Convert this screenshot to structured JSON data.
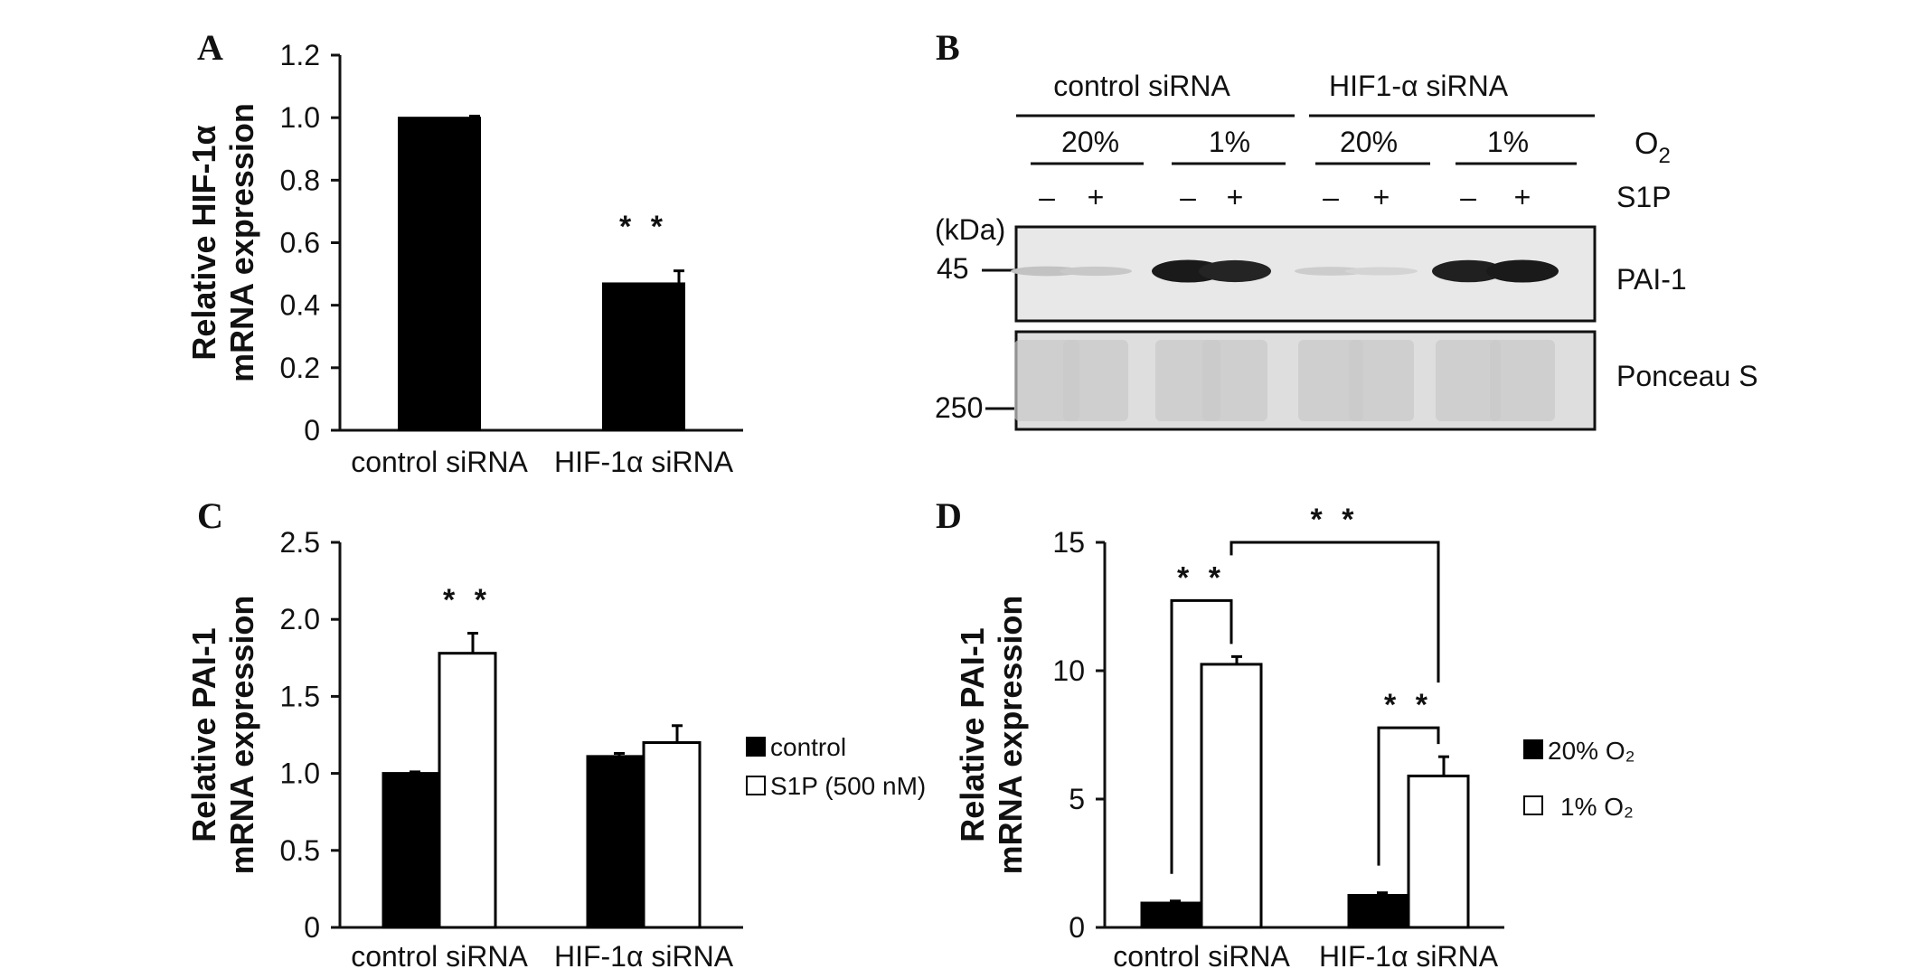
{
  "panels": {
    "a": "A",
    "b": "B",
    "c": "C",
    "d": "D"
  },
  "colors": {
    "black_bar": "#000000",
    "white_bar": "#ffffff",
    "axis": "#111111"
  },
  "chart_data": [
    {
      "panel": "A",
      "type": "bar",
      "ylabel_lines": [
        "Relative HIF-1α",
        "mRNA expression"
      ],
      "ylim": [
        0,
        1.2
      ],
      "yticks": [
        "0",
        "0.2",
        "0.4",
        "0.6",
        "0.8",
        "1.0",
        "1.2"
      ],
      "ytick_values": [
        0,
        0.2,
        0.4,
        0.6,
        0.8,
        1.0,
        1.2
      ],
      "categories": [
        "control siRNA",
        "HIF-1α siRNA"
      ],
      "values": [
        1.0,
        0.47
      ],
      "errors": [
        0.005,
        0.04
      ],
      "significance": [
        "",
        "* *"
      ]
    },
    {
      "panel": "C",
      "type": "bar",
      "ylabel_lines": [
        "Relative PAI-1",
        "mRNA expression"
      ],
      "ylim": [
        0,
        2.5
      ],
      "yticks": [
        "0",
        "0.5",
        "1.0",
        "1.5",
        "2.0",
        "2.5"
      ],
      "ytick_values": [
        0,
        0.5,
        1.0,
        1.5,
        2.0,
        2.5
      ],
      "categories": [
        "control siRNA",
        "HIF-1α siRNA"
      ],
      "series": [
        {
          "name": "control",
          "values": [
            1.0,
            1.11
          ],
          "errors": [
            0.01,
            0.02
          ]
        },
        {
          "name": "S1P (500 nM)",
          "values": [
            1.78,
            1.2
          ],
          "errors": [
            0.13,
            0.11
          ]
        }
      ],
      "significance": "* *",
      "legend_position": "right"
    },
    {
      "panel": "D",
      "type": "bar",
      "ylabel_lines": [
        "Relative PAI-1",
        "mRNA expression"
      ],
      "ylim": [
        0,
        15
      ],
      "yticks": [
        "0",
        "5",
        "10",
        "15"
      ],
      "ytick_values": [
        0,
        5,
        10,
        15
      ],
      "categories": [
        "control siRNA",
        "HIF-1α siRNA"
      ],
      "series": [
        {
          "name": "20% O₂",
          "values": [
            0.95,
            1.25
          ],
          "errors": [
            0.08,
            0.1
          ]
        },
        {
          "name": "1% O₂",
          "values": [
            10.25,
            5.9
          ],
          "errors": [
            0.3,
            0.75
          ]
        }
      ],
      "significance": [
        "* *",
        "* *",
        "* *"
      ],
      "legend_position": "right"
    }
  ],
  "blot": {
    "group_labels": [
      "control siRNA",
      "HIF1-α siRNA"
    ],
    "o2_levels": [
      "20%",
      "1%",
      "20%",
      "1%"
    ],
    "o2_label": "O",
    "o2_subscript": "2",
    "s1p_label": "S1P",
    "s1p_signs": [
      "–",
      "+",
      "–",
      "+",
      "–",
      "+",
      "–",
      "+"
    ],
    "kda_label": "(kDa)",
    "marker_45": "45",
    "marker_250": "250",
    "pai1_label": "PAI-1",
    "ponceau_label": "Ponceau S",
    "pai1_intensity": [
      0.15,
      0.12,
      0.95,
      0.9,
      0.1,
      0.06,
      0.92,
      0.95
    ]
  }
}
